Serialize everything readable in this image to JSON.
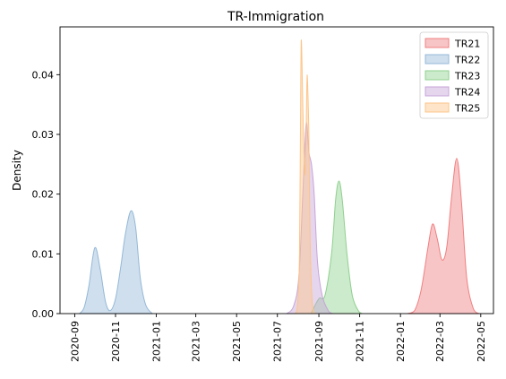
{
  "chart_data": {
    "type": "area",
    "title": "TR-Immigration",
    "xlabel": "",
    "ylabel": "Density",
    "x_axis": "date",
    "xlim": [
      "2020-08-10",
      "2022-05-20"
    ],
    "ylim": [
      0,
      0.048
    ],
    "x_ticks": [
      "2020-09",
      "2020-11",
      "2021-01",
      "2021-03",
      "2021-05",
      "2021-07",
      "2021-09",
      "2021-11",
      "2022-01",
      "2022-03",
      "2022-05"
    ],
    "y_ticks": [
      0.0,
      0.01,
      0.02,
      0.03,
      0.04
    ],
    "y_tick_labels": [
      "0.00",
      "0.01",
      "0.02",
      "0.03",
      "0.04"
    ],
    "grid": false,
    "legend_position": "top-right",
    "series": [
      {
        "name": "TR21",
        "color": "#f07f80",
        "points": [
          [
            "2022-01-12",
            0.0
          ],
          [
            "2022-01-22",
            0.0005
          ],
          [
            "2022-02-01",
            0.004
          ],
          [
            "2022-02-11",
            0.011
          ],
          [
            "2022-02-18",
            0.015
          ],
          [
            "2022-02-25",
            0.0125
          ],
          [
            "2022-03-04",
            0.009
          ],
          [
            "2022-03-11",
            0.011
          ],
          [
            "2022-03-18",
            0.019
          ],
          [
            "2022-03-26",
            0.026
          ],
          [
            "2022-04-02",
            0.019
          ],
          [
            "2022-04-10",
            0.006
          ],
          [
            "2022-04-20",
            0.0008
          ],
          [
            "2022-04-28",
            0.0
          ]
        ]
      },
      {
        "name": "TR22",
        "color": "#94b8d8",
        "points": [
          [
            "2020-09-08",
            0.0
          ],
          [
            "2020-09-15",
            0.001
          ],
          [
            "2020-09-22",
            0.0045
          ],
          [
            "2020-10-01",
            0.011
          ],
          [
            "2020-10-09",
            0.0075
          ],
          [
            "2020-10-17",
            0.002
          ],
          [
            "2020-10-24",
            0.0005
          ],
          [
            "2020-11-01",
            0.0025
          ],
          [
            "2020-11-09",
            0.008
          ],
          [
            "2020-11-16",
            0.0135
          ],
          [
            "2020-11-24",
            0.0172
          ],
          [
            "2020-12-01",
            0.0145
          ],
          [
            "2020-12-08",
            0.006
          ],
          [
            "2020-12-16",
            0.0015
          ],
          [
            "2020-12-26",
            0.0
          ]
        ]
      },
      {
        "name": "TR23",
        "color": "#8fd08f",
        "points": [
          [
            "2021-08-20",
            0.0
          ],
          [
            "2021-09-01",
            0.0025
          ],
          [
            "2021-09-10",
            0.003
          ],
          [
            "2021-09-20",
            0.01
          ],
          [
            "2021-09-26",
            0.019
          ],
          [
            "2021-10-01",
            0.0222
          ],
          [
            "2021-10-06",
            0.019
          ],
          [
            "2021-10-13",
            0.01
          ],
          [
            "2021-10-21",
            0.003
          ],
          [
            "2021-10-31",
            0.0003
          ],
          [
            "2021-11-05",
            0.0
          ]
        ]
      },
      {
        "name": "TR24",
        "color": "#c7a4d8",
        "points": [
          [
            "2021-07-15",
            0.0
          ],
          [
            "2021-07-25",
            0.0012
          ],
          [
            "2021-08-02",
            0.006
          ],
          [
            "2021-08-08",
            0.02
          ],
          [
            "2021-08-13",
            0.0318
          ],
          [
            "2021-08-17",
            0.027
          ],
          [
            "2021-08-21",
            0.025
          ],
          [
            "2021-08-25",
            0.02
          ],
          [
            "2021-08-30",
            0.0085
          ],
          [
            "2021-09-06",
            0.003
          ],
          [
            "2021-09-15",
            0.0005
          ],
          [
            "2021-09-22",
            0.0
          ]
        ]
      },
      {
        "name": "TR25",
        "color": "#fcc58a",
        "points": [
          [
            "2021-07-28",
            0.0
          ],
          [
            "2021-07-31",
            0.0015
          ],
          [
            "2021-08-03",
            0.01
          ],
          [
            "2021-08-05",
            0.04
          ],
          [
            "2021-08-06",
            0.0455
          ],
          [
            "2021-08-08",
            0.035
          ],
          [
            "2021-08-10",
            0.026
          ],
          [
            "2021-08-12",
            0.024
          ],
          [
            "2021-08-14",
            0.038
          ],
          [
            "2021-08-15",
            0.039
          ],
          [
            "2021-08-17",
            0.03
          ],
          [
            "2021-08-19",
            0.012
          ],
          [
            "2021-08-22",
            0.002
          ],
          [
            "2021-08-26",
            0.0
          ]
        ]
      }
    ]
  }
}
